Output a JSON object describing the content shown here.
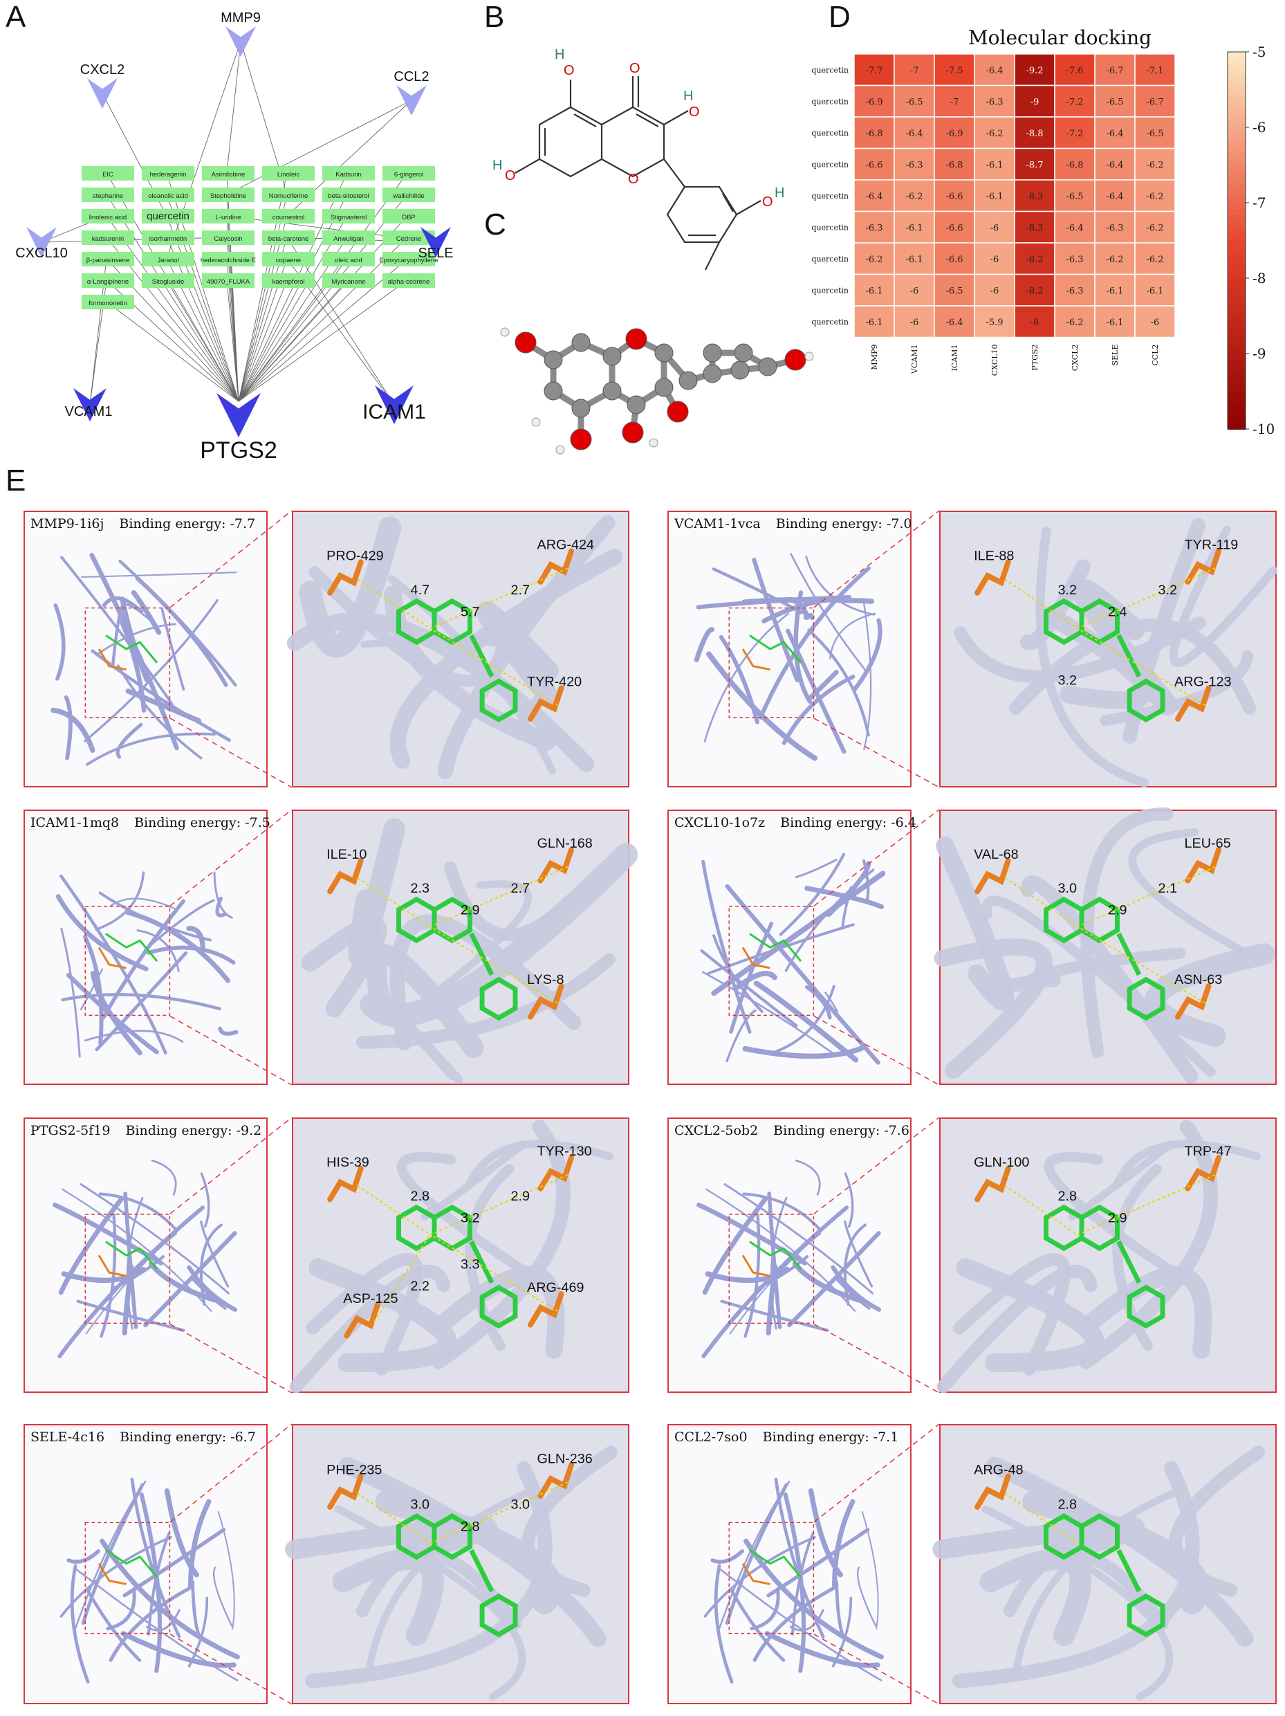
{
  "panel_letters": {
    "a": "A",
    "b": "B",
    "c": "C",
    "d": "D",
    "e": "E"
  },
  "network": {
    "targets": [
      {
        "name": "MMP9",
        "weight": "light"
      },
      {
        "name": "CXCL2",
        "weight": "light"
      },
      {
        "name": "CCL2",
        "weight": "light"
      },
      {
        "name": "CXCL10",
        "weight": "light"
      },
      {
        "name": "SELE",
        "weight": "dark"
      },
      {
        "name": "VCAM1",
        "weight": "dark"
      },
      {
        "name": "PTGS2",
        "weight": "dark"
      },
      {
        "name": "ICAM1",
        "weight": "dark"
      }
    ],
    "compounds": [
      [
        "EIC",
        "hederagenin",
        "Asimilobine",
        "Linoleic",
        "Kadsurin",
        "6-gingerol"
      ],
      [
        "stepharine",
        "oleanolic acid",
        "Stepholidine",
        "Nornuciferine",
        "beta-sitosterol",
        "wallichilide"
      ],
      [
        "linolenic acid",
        "quercetin",
        "L-uridine",
        "coumestrol",
        "Stigmasterol",
        "DBP"
      ],
      [
        "kadsurenin",
        "isorhamnetin",
        "Calycosin",
        "beta-carotene",
        "Anwuligan",
        "Cedrene"
      ],
      [
        "β-panasinsene",
        "Jaranol",
        "hederacolchiside E",
        "copaene",
        "oleic acid",
        "Epoxycaryophyllene"
      ],
      [
        "α-Longipinene",
        "Sitogluside",
        "49070_FLUKA",
        "kaempferol",
        "Myricanone",
        "alpha-cedrene"
      ],
      [
        "formononetin"
      ]
    ]
  },
  "heatmap": {
    "title": "Molecular docking",
    "row_labels": [
      "quercetin",
      "quercetin",
      "quercetin",
      "quercetin",
      "quercetin",
      "quercetin",
      "quercetin",
      "quercetin",
      "quercetin"
    ],
    "col_labels": [
      "MMP9",
      "VCAM1",
      "ICAM1",
      "CXCL10",
      "PTGS2",
      "CXCL2",
      "SELE",
      "CCL2"
    ],
    "colorbar_ticks": [
      "-5",
      "-6",
      "-7",
      "-8",
      "-9",
      "-10"
    ],
    "colorbar_range": [
      -10,
      -5
    ],
    "colors": {
      "low": "#8b0000",
      "mid": "#e8442c",
      "high": "#fde8c2"
    }
  },
  "chart_data": {
    "type": "heatmap",
    "title": "Molecular docking",
    "x": [
      "MMP9",
      "VCAM1",
      "ICAM1",
      "CXCL10",
      "PTGS2",
      "CXCL2",
      "SELE",
      "CCL2"
    ],
    "y": [
      "quercetin",
      "quercetin",
      "quercetin",
      "quercetin",
      "quercetin",
      "quercetin",
      "quercetin",
      "quercetin",
      "quercetin"
    ],
    "values": [
      [
        -7.7,
        -7,
        -7.5,
        -6.4,
        -9.2,
        -7.6,
        -6.7,
        -7.1
      ],
      [
        -6.9,
        -6.5,
        -7,
        -6.3,
        -9,
        -7.2,
        -6.5,
        -6.7
      ],
      [
        -6.8,
        -6.4,
        -6.9,
        -6.2,
        -8.8,
        -7.2,
        -6.4,
        -6.5
      ],
      [
        -6.6,
        -6.3,
        -6.8,
        -6.1,
        -8.7,
        -6.8,
        -6.4,
        -6.2
      ],
      [
        -6.4,
        -6.2,
        -6.6,
        -6.1,
        -8.3,
        -6.5,
        -6.4,
        -6.2
      ],
      [
        -6.3,
        -6.1,
        -6.6,
        -6,
        -8.3,
        -6.4,
        -6.3,
        -6.2
      ],
      [
        -6.2,
        -6.1,
        -6.6,
        -6,
        -8.2,
        -6.3,
        -6.2,
        -6.2
      ],
      [
        -6.1,
        -6,
        -6.5,
        -6,
        -8.2,
        -6.3,
        -6.1,
        -6.1
      ],
      [
        -6.1,
        -6,
        -6.4,
        -5.9,
        -8,
        -6.2,
        -6.1,
        -6
      ]
    ],
    "zlim": [
      -10,
      -5
    ]
  },
  "docking": [
    {
      "id": "mmp9",
      "protein": "MMP9-1i6j",
      "energy_label": "Binding energy:",
      "energy": "-7.7",
      "residues": [
        "PRO-429",
        "ARG-424",
        "TYR-420"
      ],
      "distances": [
        "4.7",
        "5.7",
        "2.7"
      ]
    },
    {
      "id": "vcam1",
      "protein": "VCAM1-1vca",
      "energy_label": "Binding energy:",
      "energy": "-7.0",
      "residues": [
        "ILE-88",
        "TYR-119",
        "ARG-123"
      ],
      "distances": [
        "3.2",
        "2.4",
        "3.2",
        "3.2"
      ]
    },
    {
      "id": "icam1",
      "protein": "ICAM1-1mq8",
      "energy_label": "Binding energy:",
      "energy": "-7.5",
      "residues": [
        "ILE-10",
        "GLN-168",
        "LYS-8"
      ],
      "distances": [
        "2.3",
        "2.9",
        "2.7"
      ]
    },
    {
      "id": "cxcl10",
      "protein": "CXCL10-1o7z",
      "energy_label": "Binding energy:",
      "energy": "-6.4",
      "residues": [
        "VAL-68",
        "LEU-65",
        "ASN-63"
      ],
      "distances": [
        "3.0",
        "2.9",
        "2.1"
      ]
    },
    {
      "id": "ptgs2",
      "protein": "PTGS2-5f19",
      "energy_label": "Binding energy:",
      "energy": "-9.2",
      "residues": [
        "HIS-39",
        "TYR-130",
        "ARG-469",
        "ASP-125"
      ],
      "distances": [
        "2.8",
        "3.2",
        "2.9",
        "2.2",
        "3.3"
      ]
    },
    {
      "id": "cxcl2",
      "protein": "CXCL2-5ob2",
      "energy_label": "Binding energy:",
      "energy": "-7.6",
      "residues": [
        "GLN-100",
        "TRP-47"
      ],
      "distances": [
        "2.8",
        "2.9"
      ]
    },
    {
      "id": "sele",
      "protein": "SELE-4c16",
      "energy_label": "Binding energy:",
      "energy": "-6.7",
      "residues": [
        "PHE-235",
        "GLN-236"
      ],
      "distances": [
        "3.0",
        "2.8",
        "3.0"
      ]
    },
    {
      "id": "ccl2",
      "protein": "CCL2-7so0",
      "energy_label": "Binding energy:",
      "energy": "-7.1",
      "residues": [
        "ARG-48"
      ],
      "distances": [
        "2.8"
      ]
    }
  ]
}
